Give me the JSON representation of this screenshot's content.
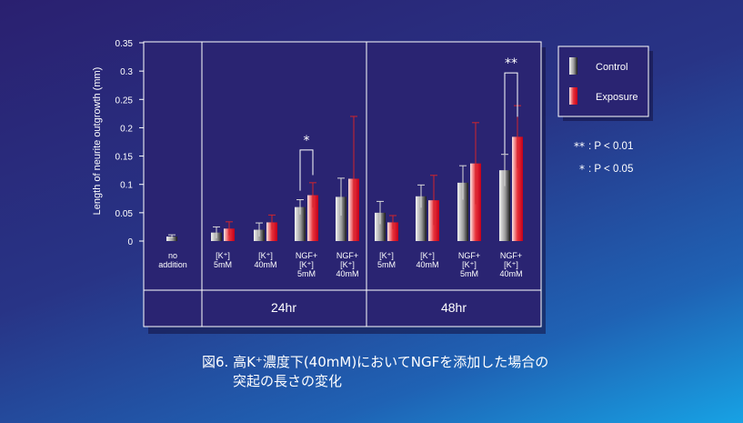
{
  "chart_data": {
    "type": "bar",
    "ylabel": "Length of neurite outgrowth (mm)",
    "ylim": [
      0,
      0.35
    ],
    "yticks": [
      "0",
      "0.05",
      "0.1",
      "0.15",
      "0.2",
      "0.25",
      "0.3",
      "0.35"
    ],
    "categories": [
      [
        "no",
        "addition"
      ],
      [
        "[K⁺]",
        "5mM"
      ],
      [
        "[K⁺]",
        "40mM"
      ],
      [
        "NGF+",
        "[K⁺]",
        "5mM"
      ],
      [
        "NGF+",
        "[K⁺]",
        "40mM"
      ],
      [
        "[K⁺]",
        "5mM"
      ],
      [
        "[K⁺]",
        "40mM"
      ],
      [
        "NGF+",
        "[K⁺]",
        "5mM"
      ],
      [
        "NGF+",
        "[K⁺]",
        "40mM"
      ]
    ],
    "groups": [
      "24hr",
      "48hr"
    ],
    "series": [
      {
        "name": "Control",
        "values": [
          0.008,
          0.015,
          0.02,
          0.06,
          0.078,
          0.05,
          0.079,
          0.103,
          0.125
        ],
        "errors": [
          0.003,
          0.01,
          0.012,
          0.013,
          0.033,
          0.02,
          0.02,
          0.03,
          0.028
        ],
        "color": "#b9b9b9"
      },
      {
        "name": "Exposure",
        "values": [
          null,
          0.022,
          0.033,
          0.081,
          0.11,
          0.033,
          0.072,
          0.137,
          0.184
        ],
        "errors": [
          null,
          0.012,
          0.013,
          0.022,
          0.11,
          0.012,
          0.044,
          0.072,
          0.055
        ],
        "color": "#e0202a"
      }
    ],
    "significance": [
      {
        "category_index": 3,
        "mark": "*"
      },
      {
        "category_index": 8,
        "mark": "**"
      }
    ],
    "significance_legend": [
      {
        "mark": "**",
        "text": ": P < 0.01"
      },
      {
        "mark": "*",
        "text": ": P < 0.05"
      }
    ]
  },
  "caption": {
    "line1": "図6.  高K⁺濃度下(40mM)においてNGFを添加した場合の",
    "line2": "突起の長さの変化"
  }
}
